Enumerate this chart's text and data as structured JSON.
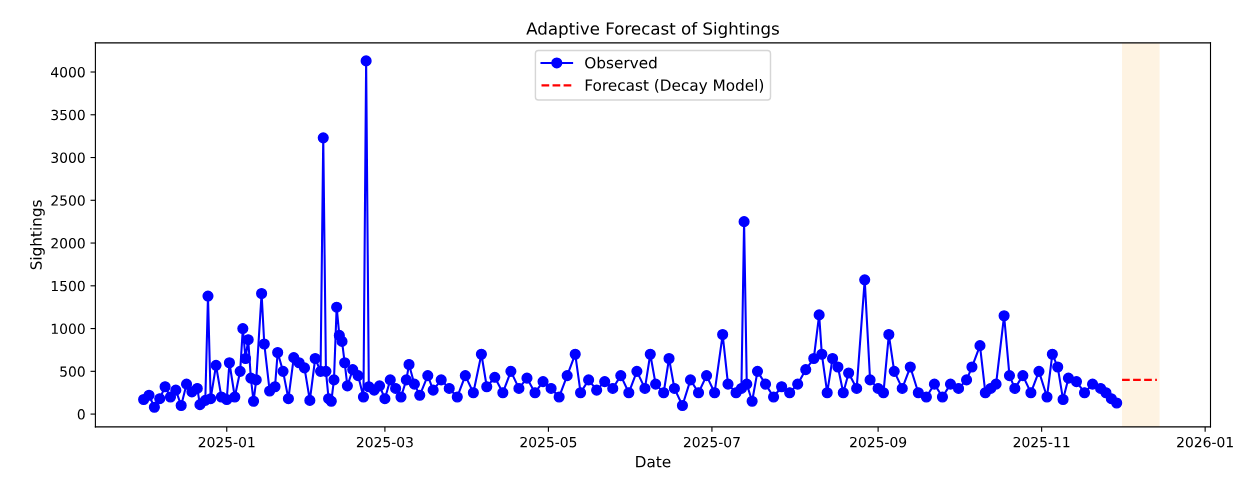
{
  "chart_data": {
    "type": "line",
    "title": "Adaptive Forecast of Sightings",
    "xlabel": "Date",
    "ylabel": "Sightings",
    "series": [
      {
        "name": "Observed",
        "color": "#0000ff",
        "marker": "circle",
        "line_style": "solid",
        "x": [
          "2024-12-01",
          "2024-12-03",
          "2024-12-05",
          "2024-12-07",
          "2024-12-09",
          "2024-12-11",
          "2024-12-13",
          "2024-12-15",
          "2024-12-17",
          "2024-12-19",
          "2024-12-21",
          "2024-12-22",
          "2024-12-24",
          "2024-12-25",
          "2024-12-26",
          "2024-12-28",
          "2024-12-30",
          "2025-01-01",
          "2025-01-02",
          "2025-01-04",
          "2025-01-06",
          "2025-01-07",
          "2025-01-08",
          "2025-01-09",
          "2025-01-10",
          "2025-01-11",
          "2025-01-12",
          "2025-01-14",
          "2025-01-15",
          "2025-01-17",
          "2025-01-19",
          "2025-01-20",
          "2025-01-22",
          "2025-01-24",
          "2025-01-26",
          "2025-01-28",
          "2025-01-30",
          "2025-02-01",
          "2025-02-03",
          "2025-02-05",
          "2025-02-06",
          "2025-02-07",
          "2025-02-08",
          "2025-02-09",
          "2025-02-10",
          "2025-02-11",
          "2025-02-12",
          "2025-02-13",
          "2025-02-14",
          "2025-02-15",
          "2025-02-17",
          "2025-02-19",
          "2025-02-21",
          "2025-02-22",
          "2025-02-23",
          "2025-02-25",
          "2025-02-27",
          "2025-03-01",
          "2025-03-03",
          "2025-03-05",
          "2025-03-07",
          "2025-03-09",
          "2025-03-10",
          "2025-03-12",
          "2025-03-14",
          "2025-03-17",
          "2025-03-19",
          "2025-03-22",
          "2025-03-25",
          "2025-03-28",
          "2025-03-31",
          "2025-04-03",
          "2025-04-06",
          "2025-04-08",
          "2025-04-11",
          "2025-04-14",
          "2025-04-17",
          "2025-04-20",
          "2025-04-23",
          "2025-04-26",
          "2025-04-29",
          "2025-05-02",
          "2025-05-05",
          "2025-05-08",
          "2025-05-11",
          "2025-05-13",
          "2025-05-16",
          "2025-05-19",
          "2025-05-22",
          "2025-05-25",
          "2025-05-28",
          "2025-05-31",
          "2025-06-03",
          "2025-06-06",
          "2025-06-08",
          "2025-06-10",
          "2025-06-13",
          "2025-06-15",
          "2025-06-17",
          "2025-06-20",
          "2025-06-23",
          "2025-06-26",
          "2025-06-29",
          "2025-07-02",
          "2025-07-05",
          "2025-07-07",
          "2025-07-10",
          "2025-07-12",
          "2025-07-13",
          "2025-07-14",
          "2025-07-16",
          "2025-07-18",
          "2025-07-21",
          "2025-07-24",
          "2025-07-27",
          "2025-07-30",
          "2025-08-02",
          "2025-08-05",
          "2025-08-08",
          "2025-08-10",
          "2025-08-11",
          "2025-08-13",
          "2025-08-15",
          "2025-08-17",
          "2025-08-19",
          "2025-08-21",
          "2025-08-24",
          "2025-08-27",
          "2025-08-29",
          "2025-09-01",
          "2025-09-03",
          "2025-09-05",
          "2025-09-07",
          "2025-09-10",
          "2025-09-13",
          "2025-09-16",
          "2025-09-19",
          "2025-09-22",
          "2025-09-25",
          "2025-09-28",
          "2025-10-01",
          "2025-10-04",
          "2025-10-06",
          "2025-10-09",
          "2025-10-11",
          "2025-10-13",
          "2025-10-15",
          "2025-10-18",
          "2025-10-20",
          "2025-10-22",
          "2025-10-25",
          "2025-10-28",
          "2025-10-31",
          "2025-11-03",
          "2025-11-05",
          "2025-11-07",
          "2025-11-09",
          "2025-11-11",
          "2025-11-14",
          "2025-11-17",
          "2025-11-20",
          "2025-11-23",
          "2025-11-25",
          "2025-11-27",
          "2025-11-29"
        ],
        "values": [
          170,
          220,
          80,
          180,
          320,
          200,
          280,
          100,
          350,
          260,
          300,
          110,
          160,
          1380,
          180,
          570,
          200,
          170,
          600,
          200,
          500,
          1000,
          650,
          870,
          420,
          150,
          400,
          1410,
          820,
          270,
          320,
          720,
          500,
          180,
          660,
          600,
          540,
          160,
          650,
          500,
          3230,
          500,
          180,
          150,
          400,
          1250,
          920,
          850,
          600,
          330,
          520,
          450,
          200,
          4130,
          320,
          280,
          330,
          180,
          400,
          300,
          200,
          400,
          580,
          350,
          220,
          450,
          280,
          400,
          300,
          200,
          450,
          250,
          700,
          320,
          430,
          250,
          500,
          300,
          420,
          250,
          380,
          300,
          200,
          450,
          700,
          250,
          400,
          280,
          380,
          300,
          450,
          250,
          500,
          300,
          700,
          350,
          250,
          650,
          300,
          100,
          400,
          250,
          450,
          250,
          930,
          350,
          250,
          300,
          2250,
          350,
          150,
          500,
          350,
          200,
          320,
          250,
          350,
          520,
          650,
          1160,
          700,
          250,
          650,
          550,
          250,
          480,
          300,
          1570,
          400,
          300,
          250,
          930,
          500,
          300,
          550,
          250,
          200,
          350,
          200,
          350,
          300,
          400,
          550,
          800,
          250,
          300,
          350,
          1150,
          450,
          300,
          450,
          250,
          500,
          200,
          700,
          550,
          170,
          420,
          380,
          250,
          350,
          300,
          250,
          180,
          130
        ]
      },
      {
        "name": "Forecast (Decay Model)",
        "color": "#ff0000",
        "marker": "none",
        "line_style": "dashed",
        "x": [
          "2025-12-01",
          "2025-12-14"
        ],
        "values": [
          400,
          400
        ]
      }
    ],
    "bands": [
      {
        "axis": "x",
        "from": "2025-12-01",
        "to": "2025-12-15",
        "color": "#fef3e2"
      }
    ],
    "xlim": [
      "2024-11-13",
      "2026-01-03"
    ],
    "xticks": [
      "2025-01",
      "2025-03",
      "2025-05",
      "2025-07",
      "2025-09",
      "2025-11",
      "2026-01"
    ],
    "ylim": [
      -150,
      4340
    ],
    "yticks": [
      0,
      500,
      1000,
      1500,
      2000,
      2500,
      3000,
      3500,
      4000
    ],
    "grid": false,
    "legend": "top"
  }
}
